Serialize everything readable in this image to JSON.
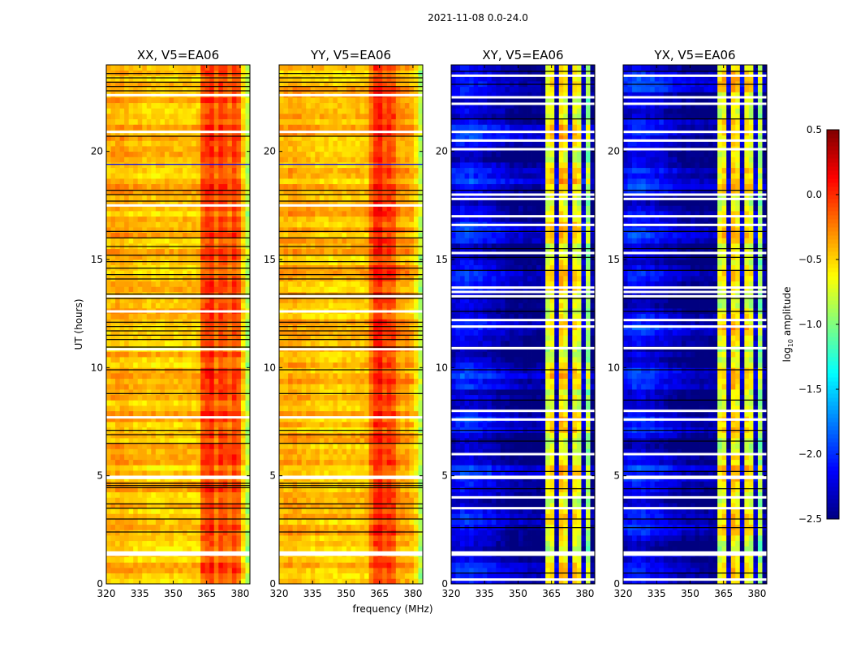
{
  "chart_data": {
    "type": "heatmap",
    "title": "2021-11-08 0.0-24.0",
    "xlabel": "frequency (MHz)",
    "ylabel": "UT (hours)",
    "xlim": [
      320,
      384.4
    ],
    "ylim": [
      0,
      24
    ],
    "xticks": [
      "320",
      "335",
      "350",
      "365",
      "380"
    ],
    "xtick_values": [
      320,
      335,
      350,
      365,
      380
    ],
    "yticks": [
      "0",
      "5",
      "10",
      "15",
      "20"
    ],
    "ytick_values": [
      0,
      5,
      10,
      15,
      20
    ],
    "freq_bin_edges_mhz": [
      320,
      384.4
    ],
    "colorbar": {
      "label_main": "log",
      "label_sub": "10",
      "label_rest": " amplitude",
      "range": [
        -2.5,
        0.5
      ],
      "ticks": [
        "0.5",
        "0.0",
        "−0.5",
        "−1.0",
        "−1.5",
        "−2.0",
        "−2.5"
      ],
      "tick_values": [
        0.5,
        0.0,
        -0.5,
        -1.0,
        -1.5,
        -2.0,
        -2.5
      ],
      "colormap": "jet"
    },
    "panels": [
      {
        "title": "XX, V5=EA06",
        "freq_profile_log10": [
          -0.42,
          -0.4,
          -0.38,
          -0.38,
          -0.4,
          -0.42,
          -0.43,
          -0.44,
          -0.45,
          -0.46,
          -0.46,
          -0.46,
          -0.47,
          -0.47,
          -0.46,
          -0.46,
          -0.45,
          -0.45,
          -0.45,
          -0.45,
          -0.45,
          -0.1,
          -0.05,
          0.0,
          -0.2,
          -0.05,
          -0.1,
          -0.2,
          -0.05,
          -0.15,
          -0.5,
          -0.85
        ],
        "flagged_hours": [
          1.35,
          1.45,
          4.9,
          4.95,
          7.7,
          10.85,
          12.6,
          13.3,
          17.5,
          20.9,
          22.6
        ],
        "dark_lines_hours": [
          2.4,
          3.0,
          3.5,
          3.7,
          4.45,
          4.55,
          4.65,
          6.5,
          6.9,
          7.1,
          8.8,
          9.9,
          10.95,
          11.3,
          11.5,
          11.7,
          11.9,
          12.1,
          13.2,
          13.4,
          14.1,
          14.3,
          14.6,
          14.9,
          15.2,
          15.6,
          16.0,
          16.3,
          17.7,
          18.0,
          18.2,
          20.7,
          22.8,
          23.0,
          23.2,
          23.4,
          23.6
        ],
        "blue_lines_hours": [
          19.4
        ]
      },
      {
        "title": "YY, V5=EA06",
        "freq_profile_log10": [
          -0.42,
          -0.4,
          -0.38,
          -0.38,
          -0.4,
          -0.42,
          -0.43,
          -0.44,
          -0.45,
          -0.46,
          -0.46,
          -0.46,
          -0.47,
          -0.47,
          -0.46,
          -0.46,
          -0.45,
          -0.45,
          -0.45,
          -0.45,
          -0.2,
          0.0,
          0.05,
          -0.1,
          -0.05,
          -0.1,
          -0.3,
          -0.35,
          -0.35,
          -0.4,
          -0.55,
          -0.85
        ],
        "flagged_hours": [
          1.35,
          1.45,
          4.9,
          4.95,
          7.7,
          10.85,
          12.6,
          13.3,
          17.5,
          20.9,
          22.6
        ],
        "dark_lines_hours": [
          2.4,
          3.0,
          3.5,
          3.7,
          4.45,
          4.55,
          4.65,
          6.5,
          6.9,
          7.1,
          8.8,
          9.9,
          10.95,
          11.3,
          11.5,
          11.7,
          11.9,
          12.1,
          13.2,
          13.4,
          14.1,
          14.3,
          14.6,
          14.9,
          15.2,
          15.6,
          16.0,
          16.3,
          17.7,
          18.0,
          18.2,
          20.7,
          22.8,
          23.0,
          23.2,
          23.4,
          23.6
        ],
        "blue_lines_hours": [
          19.4
        ]
      },
      {
        "title": "XY, V5=EA06",
        "freq_profile_log10": [
          -2.2,
          -2.15,
          -2.1,
          -2.1,
          -2.1,
          -2.15,
          -2.15,
          -2.2,
          -2.2,
          -2.25,
          -2.3,
          -2.3,
          -2.35,
          -2.4,
          -2.4,
          -2.4,
          -2.45,
          -2.45,
          -2.45,
          -2.45,
          -2.45,
          -0.7,
          -0.6,
          -2.3,
          -0.5,
          -0.6,
          -2.3,
          -0.6,
          -0.7,
          -2.3,
          -0.9,
          -2.45
        ],
        "flagged_hours": [
          0.2,
          1.35,
          1.45,
          3.5,
          4.0,
          4.9,
          4.95,
          6.0,
          7.6,
          8.0,
          10.9,
          11.9,
          12.2,
          13.3,
          13.5,
          13.7,
          15.3,
          16.6,
          17.0,
          17.8,
          18.0,
          20.1,
          20.5,
          20.9,
          22.2,
          22.5,
          23.5
        ],
        "dark_lines_hours": [
          0.5,
          2.6,
          3.0,
          4.4,
          5.2,
          6.6,
          7.1,
          8.5,
          9.9,
          12.6,
          13.2,
          14.5,
          15.1,
          15.5,
          16.3,
          18.2,
          21.5,
          23.1,
          23.7
        ],
        "blue_lines_hours": []
      },
      {
        "title": "YX, V5=EA06",
        "freq_profile_log10": [
          -2.2,
          -2.15,
          -2.1,
          -2.1,
          -2.1,
          -2.15,
          -2.15,
          -2.2,
          -2.2,
          -2.25,
          -2.3,
          -2.3,
          -2.35,
          -2.4,
          -2.4,
          -2.4,
          -2.45,
          -2.45,
          -2.45,
          -2.45,
          -2.45,
          -0.7,
          -0.6,
          -2.3,
          -0.5,
          -0.6,
          -2.3,
          -0.6,
          -0.7,
          -2.3,
          -0.9,
          -2.45
        ],
        "flagged_hours": [
          0.2,
          1.35,
          1.45,
          3.5,
          4.0,
          4.9,
          4.95,
          6.0,
          7.6,
          8.0,
          10.9,
          11.9,
          12.2,
          13.3,
          13.5,
          13.7,
          15.3,
          16.6,
          17.0,
          17.8,
          18.0,
          20.1,
          20.5,
          20.9,
          22.2,
          22.5,
          23.5
        ],
        "dark_lines_hours": [
          0.5,
          2.6,
          3.0,
          4.4,
          5.2,
          6.6,
          7.1,
          8.5,
          9.9,
          12.6,
          13.2,
          14.5,
          15.1,
          15.5,
          16.3,
          18.2,
          21.5,
          23.1,
          23.7
        ],
        "blue_lines_hours": []
      }
    ]
  }
}
